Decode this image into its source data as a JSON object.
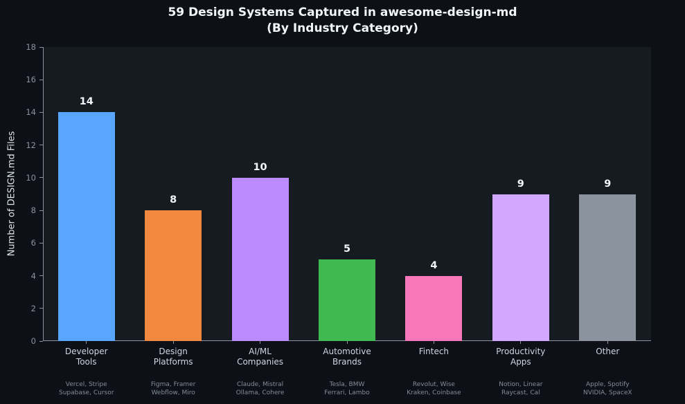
{
  "header": {
    "title_line1": "59 Design Systems Captured in awesome-design-md",
    "title_line2": "(By Industry Category)"
  },
  "chart_data": {
    "type": "bar",
    "title": "59 Design Systems Captured in awesome-design-md (By Industry Category)",
    "xlabel": "",
    "ylabel": "Number of DESIGN.md Files",
    "ylim": [
      0,
      18
    ],
    "yticks": [
      0,
      2,
      4,
      6,
      8,
      10,
      12,
      14,
      16,
      18
    ],
    "grid": false,
    "legend": false,
    "background_color": "#0d1117",
    "plot_background_color": "#161b22",
    "axis_color": "#8b949e",
    "value_label_color": "#f0f6fc",
    "categories": [
      "Developer Tools",
      "Design Platforms",
      "AI/ML Companies",
      "Automotive Brands",
      "Fintech",
      "Productivity Apps",
      "Other"
    ],
    "category_label_lines": [
      [
        "Developer",
        "Tools"
      ],
      [
        "Design",
        "Platforms"
      ],
      [
        "AI/ML",
        "Companies"
      ],
      [
        "Automotive",
        "Brands"
      ],
      [
        "Fintech"
      ],
      [
        "Productivity",
        "Apps"
      ],
      [
        "Other"
      ]
    ],
    "values": [
      14,
      8,
      10,
      5,
      4,
      9,
      9
    ],
    "bar_colors": [
      "#58a6ff",
      "#f0883e",
      "#bc8cff",
      "#3fb950",
      "#f778ba",
      "#d2a8ff",
      "#8b949e"
    ],
    "sublabel_lines": [
      [
        "Vercel, Stripe",
        "Supabase, Cursor"
      ],
      [
        "Figma, Framer",
        "Webflow, Miro"
      ],
      [
        "Claude, Mistral",
        "Ollama, Cohere"
      ],
      [
        "Tesla, BMW",
        "Ferrari, Lambo"
      ],
      [
        "Revolut, Wise",
        "Kraken, Coinbase"
      ],
      [
        "Notion, Linear",
        "Raycast, Cal"
      ],
      [
        "Apple, Spotify",
        "NVIDIA, SpaceX"
      ]
    ]
  }
}
